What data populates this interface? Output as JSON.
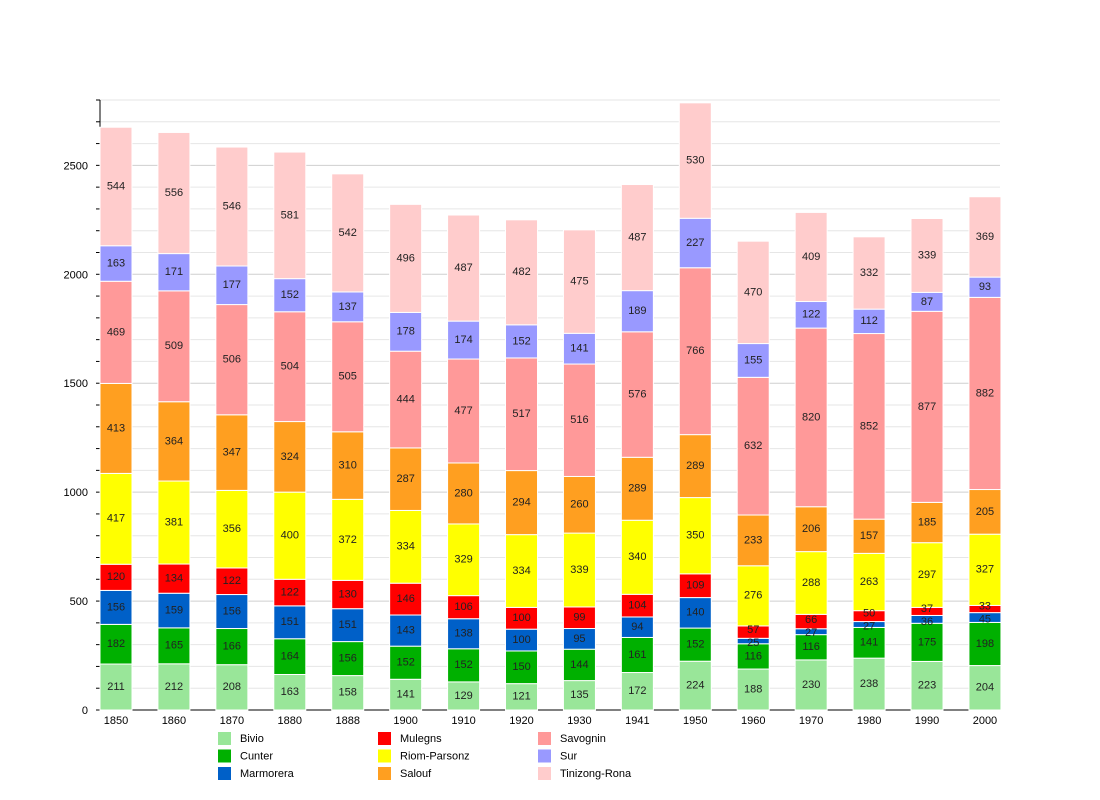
{
  "chart_data": {
    "type": "bar",
    "stacked": true,
    "title": "",
    "xlabel": "",
    "ylabel": "",
    "ylim": [
      0,
      2800
    ],
    "yticks": [
      0,
      500,
      1000,
      1500,
      2000,
      2500
    ],
    "grid": true,
    "legend_position": "bottom",
    "categories": [
      "1850",
      "1860",
      "1870",
      "1880",
      "1888",
      "1900",
      "1910",
      "1920",
      "1930",
      "1941",
      "1950",
      "1960",
      "1970",
      "1980",
      "1990",
      "2000"
    ],
    "series": [
      {
        "name": "Bivio",
        "color": "#99e699",
        "values": [
          211,
          212,
          208,
          163,
          158,
          141,
          129,
          121,
          135,
          172,
          224,
          188,
          230,
          238,
          223,
          204
        ]
      },
      {
        "name": "Cunter",
        "color": "#00b000",
        "values": [
          182,
          165,
          166,
          164,
          156,
          152,
          152,
          150,
          144,
          161,
          152,
          116,
          116,
          141,
          175,
          198
        ]
      },
      {
        "name": "Marmorera",
        "color": "#0060c8",
        "values": [
          156,
          159,
          156,
          151,
          151,
          143,
          138,
          100,
          95,
          94,
          140,
          25,
          27,
          27,
          36,
          45
        ]
      },
      {
        "name": "Mulegns",
        "color": "#ff0000",
        "values": [
          120,
          134,
          122,
          122,
          130,
          146,
          106,
          100,
          99,
          104,
          109,
          57,
          66,
          50,
          37,
          33
        ]
      },
      {
        "name": "Riom-Parsonz",
        "color": "#ffff00",
        "values": [
          417,
          381,
          356,
          400,
          372,
          334,
          329,
          334,
          339,
          340,
          350,
          276,
          288,
          263,
          297,
          327
        ]
      },
      {
        "name": "Salouf",
        "color": "#ff9f20",
        "values": [
          413,
          364,
          347,
          324,
          310,
          287,
          280,
          294,
          260,
          289,
          289,
          233,
          206,
          157,
          185,
          205
        ]
      },
      {
        "name": "Savognin",
        "color": "#ff9999",
        "values": [
          469,
          509,
          506,
          504,
          505,
          444,
          477,
          517,
          516,
          576,
          766,
          632,
          820,
          852,
          877,
          882
        ]
      },
      {
        "name": "Sur",
        "color": "#9999ff",
        "values": [
          163,
          171,
          177,
          152,
          137,
          178,
          174,
          152,
          141,
          189,
          227,
          155,
          122,
          112,
          87,
          93
        ]
      },
      {
        "name": "Tinizong-Rona",
        "color": "#ffcccc",
        "values": [
          544,
          556,
          546,
          581,
          542,
          496,
          487,
          482,
          475,
          487,
          530,
          470,
          409,
          332,
          339,
          369
        ]
      }
    ]
  }
}
